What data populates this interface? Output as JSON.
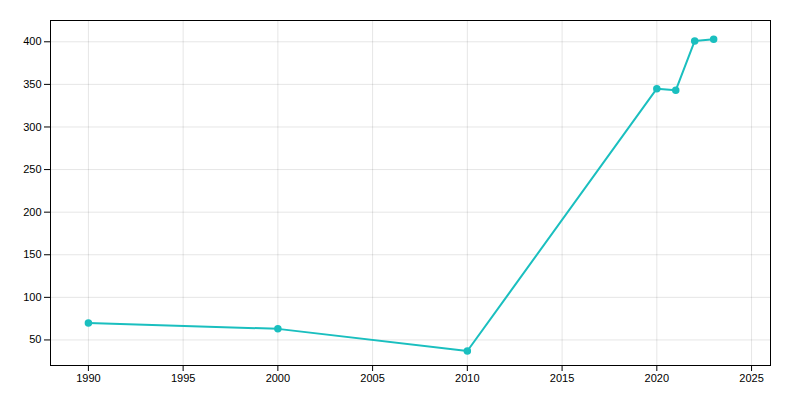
{
  "chart_data": {
    "type": "line",
    "x": [
      1990,
      2000,
      2010,
      2020,
      2021,
      2022,
      2023
    ],
    "values": [
      70,
      63,
      37,
      345,
      343,
      401,
      403
    ],
    "color": "#1abfbf",
    "marker": "circle",
    "xlim": [
      1988,
      2026
    ],
    "ylim": [
      20,
      425
    ],
    "xticks": [
      1990,
      1995,
      2000,
      2005,
      2010,
      2015,
      2020,
      2025
    ],
    "yticks": [
      50,
      100,
      150,
      200,
      250,
      300,
      350,
      400
    ],
    "grid": true
  }
}
